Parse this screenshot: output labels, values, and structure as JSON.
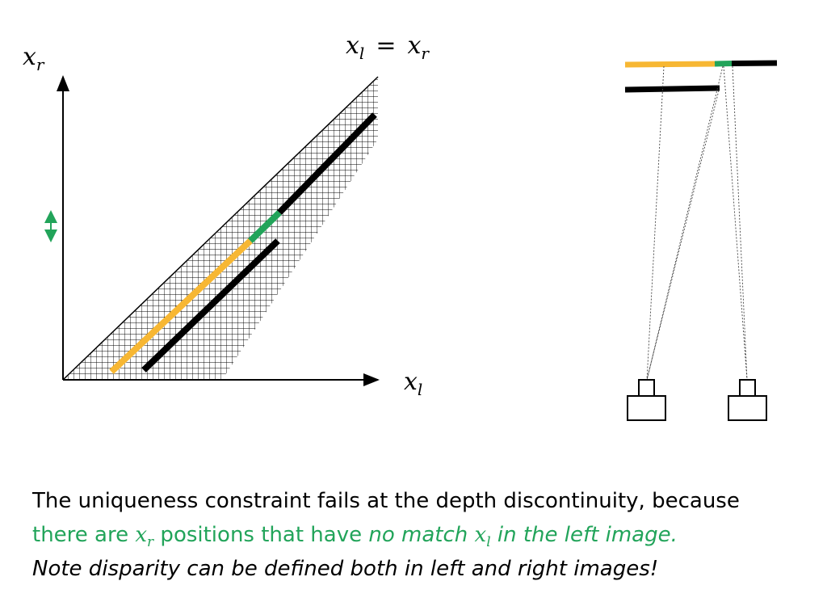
{
  "diagram": {
    "equation": {
      "lhs": "x",
      "lhs_sub": "l",
      "op": "=",
      "rhs": "x",
      "rhs_sub": "r"
    },
    "y_axis_label": {
      "base": "x",
      "sub": "r"
    },
    "x_axis_label": {
      "base": "x",
      "sub": "l"
    },
    "colors": {
      "orange": "#f7b733",
      "green": "#22a45a",
      "black": "#000000"
    }
  },
  "caption": {
    "line1": "The uniqueness constraint fails at the depth discontinuity, because",
    "line2_pre": "there are ",
    "line2_var": "x",
    "line2_var_sub": "r",
    "line2_mid": " positions that have ",
    "line2_em_pre": "no match ",
    "line2_em_var": "x",
    "line2_em_var_sub": "l",
    "line2_em_post": " in the left image.",
    "line3": "Note  disparity can be defined both in left and right images!"
  }
}
